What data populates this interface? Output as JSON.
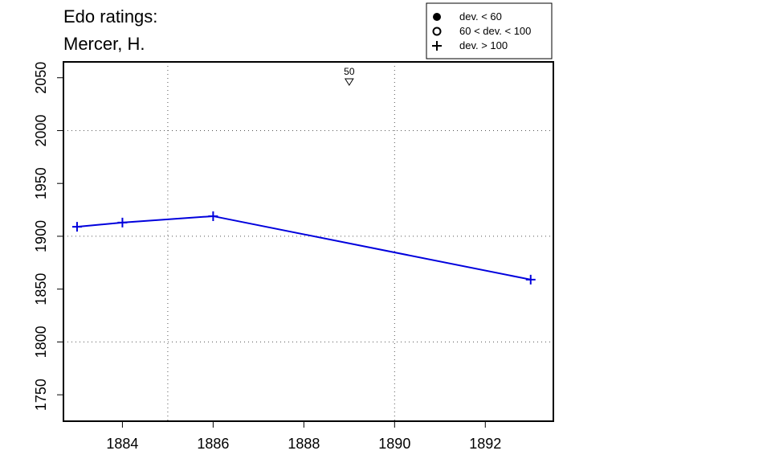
{
  "chart_data": {
    "type": "line",
    "title_lines": [
      "Edo ratings:",
      "Mercer, H."
    ],
    "xlabel": "",
    "ylabel": "",
    "xlim": [
      1882.7,
      1893.5
    ],
    "ylim": [
      1725,
      2065
    ],
    "x_ticks": [
      1884,
      1886,
      1888,
      1890,
      1892
    ],
    "y_ticks": [
      1750,
      1800,
      1850,
      1900,
      1950,
      2000,
      2050
    ],
    "x_gridlines": [
      1885,
      1890
    ],
    "y_gridlines": [
      1800,
      1900,
      2000
    ],
    "series": [
      {
        "color": "#0000dd",
        "marker": "plus",
        "points": [
          {
            "x": 1883,
            "y": 1909
          },
          {
            "x": 1884,
            "y": 1913
          },
          {
            "x": 1886,
            "y": 1919
          },
          {
            "x": 1893,
            "y": 1859
          }
        ]
      }
    ],
    "annotations": [
      {
        "x": 1889,
        "y": 2046,
        "label": "50",
        "marker": "triangle-down"
      }
    ],
    "legend": {
      "position": "top-right",
      "entries": [
        {
          "marker": "filled-circle",
          "label": "dev. < 60"
        },
        {
          "marker": "open-circle",
          "label": "60 < dev. < 100"
        },
        {
          "marker": "plus",
          "label": "dev. > 100"
        }
      ]
    }
  }
}
